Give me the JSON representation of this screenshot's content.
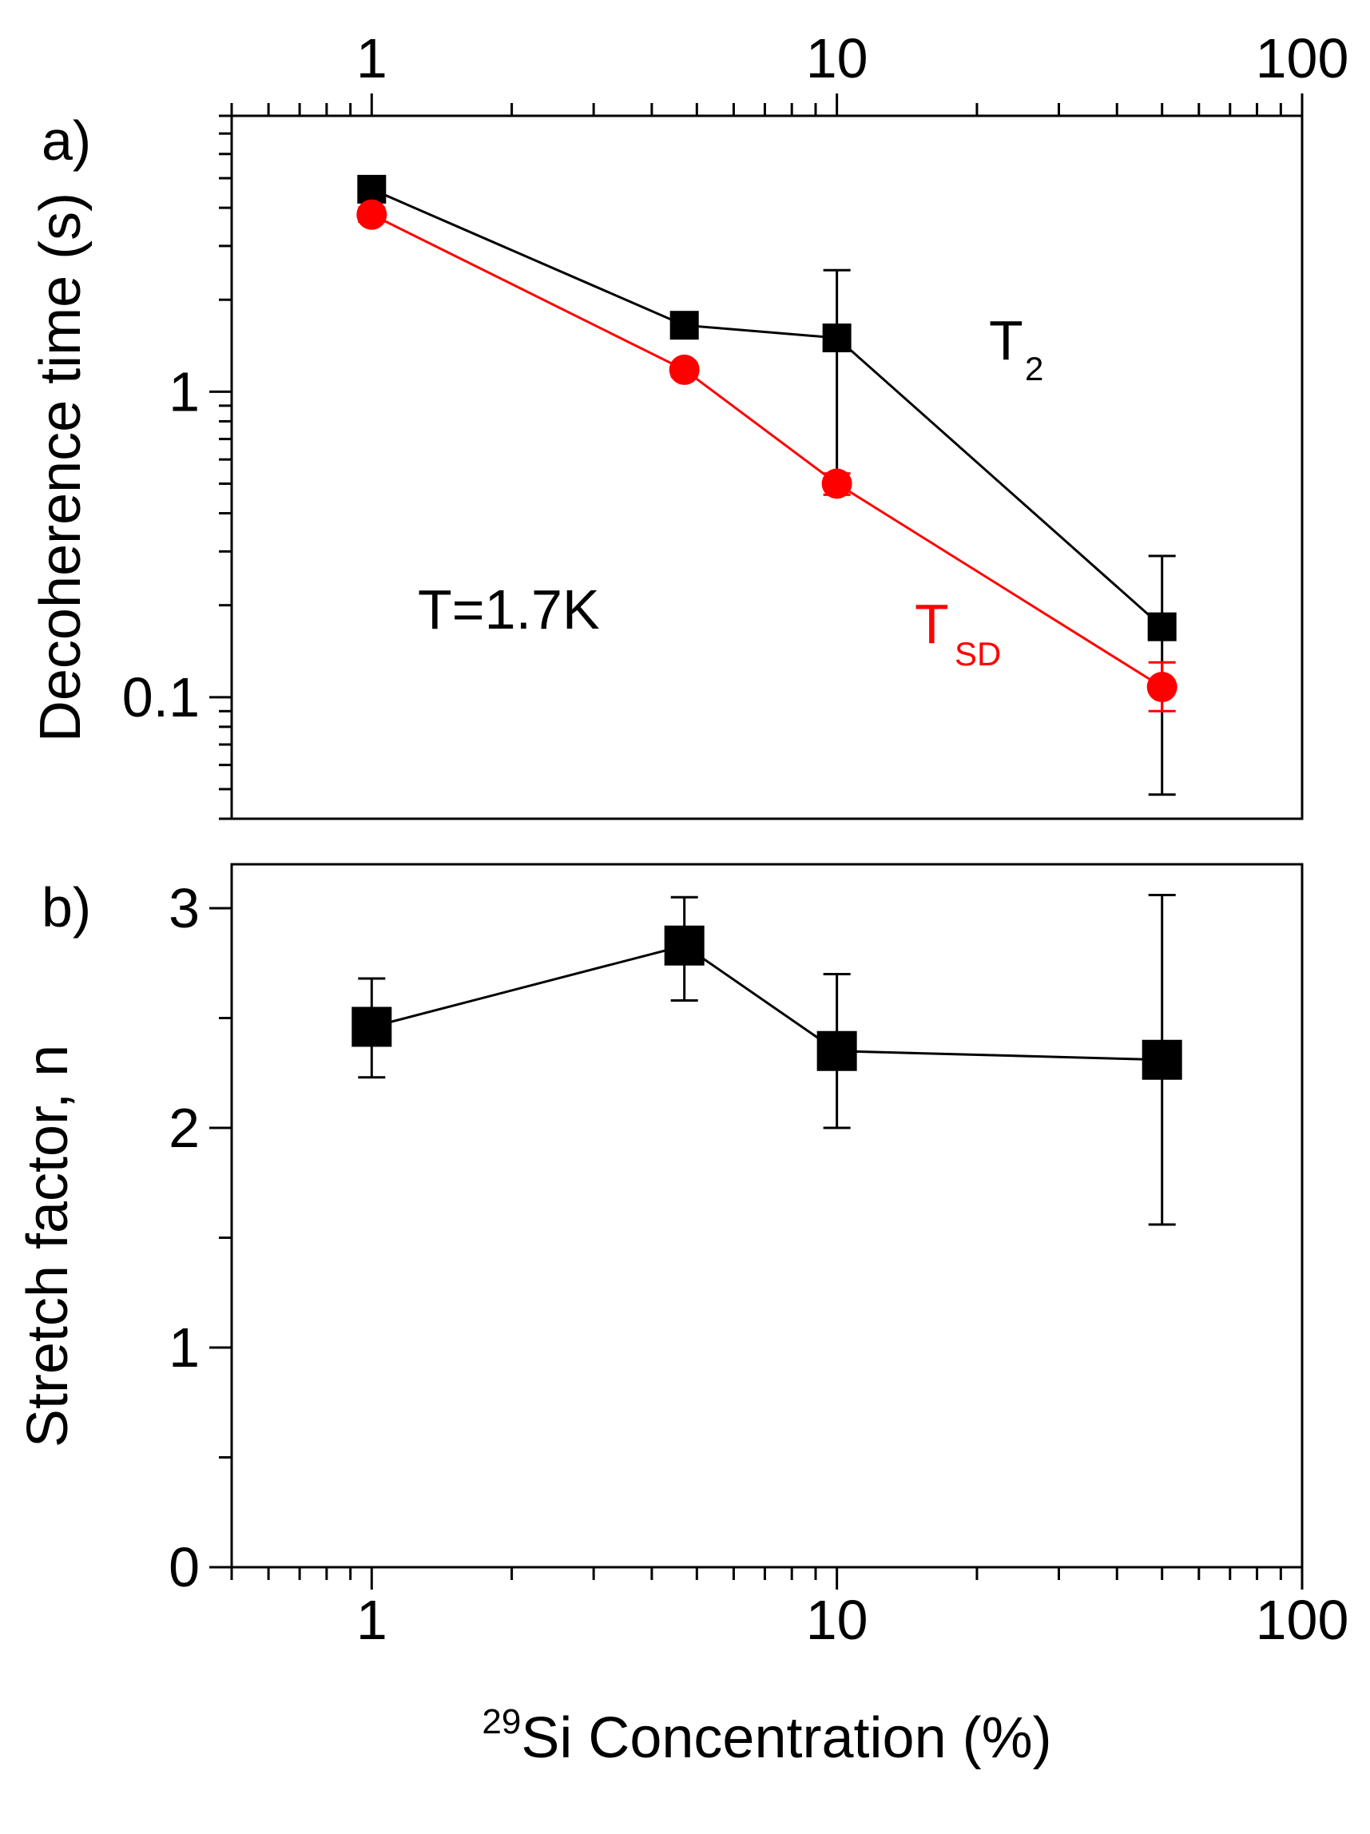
{
  "chart_data": [
    {
      "panel": "a)",
      "type": "line",
      "xscale": "log",
      "yscale": "log",
      "xlim": [
        0.5,
        100
      ],
      "ylim": [
        0.04,
        8
      ],
      "x_ticks": [
        "1",
        "10",
        "100"
      ],
      "x_tick_values": [
        1,
        10,
        100
      ],
      "y_ticks": [
        "0.1",
        "1"
      ],
      "y_tick_values": [
        0.1,
        1
      ],
      "ylabel": "Decoherence time (s)",
      "annotation": "T=1.7K",
      "series": [
        {
          "name": "T",
          "subscript": "2",
          "color": "#000000",
          "marker": "square",
          "x": [
            1,
            4.7,
            10,
            50
          ],
          "y": [
            4.6,
            1.65,
            1.5,
            0.17
          ],
          "err_low": [
            4.25,
            1.5,
            0.5,
            0.048
          ],
          "err_high": [
            4.95,
            1.8,
            2.5,
            0.29
          ]
        },
        {
          "name": "T",
          "subscript": "SD",
          "color": "#ff0000",
          "marker": "circle",
          "x": [
            1,
            4.7,
            10,
            50
          ],
          "y": [
            3.8,
            1.18,
            0.5,
            0.108
          ],
          "err_low": [
            3.6,
            1.12,
            0.46,
            0.09
          ],
          "err_high": [
            4.0,
            1.24,
            0.54,
            0.13
          ]
        }
      ]
    },
    {
      "panel": "b)",
      "type": "line",
      "xscale": "log",
      "xlim": [
        0.5,
        100
      ],
      "ylim": [
        0,
        3.2
      ],
      "x_ticks": [
        "1",
        "10",
        "100"
      ],
      "x_tick_values": [
        1,
        10,
        100
      ],
      "y_ticks": [
        "0",
        "1",
        "2",
        "3"
      ],
      "y_tick_values": [
        0,
        1,
        2,
        3
      ],
      "ylabel": "Stretch factor, n",
      "xlabel_sup": "29",
      "xlabel": "Si Concentration (%)",
      "series": [
        {
          "color": "#000000",
          "marker": "square",
          "x": [
            1,
            4.7,
            10,
            50
          ],
          "y": [
            2.46,
            2.83,
            2.35,
            2.31
          ],
          "err_low": [
            2.23,
            2.58,
            2.0,
            1.56
          ],
          "err_high": [
            2.68,
            3.05,
            2.7,
            3.06
          ]
        }
      ]
    }
  ]
}
